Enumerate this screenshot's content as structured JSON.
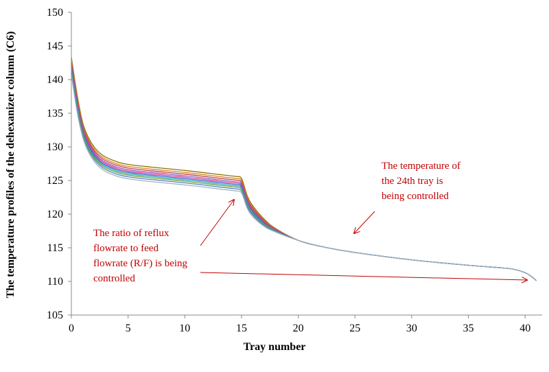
{
  "chart_data": {
    "type": "line",
    "title": "",
    "xlabel": "Tray  number",
    "ylabel": "The temperature profiles of the dehexanizer column   (C6)",
    "xlim": [
      0,
      41.5
    ],
    "ylim": [
      105,
      150
    ],
    "xticks": [
      "0",
      "5",
      "10",
      "15",
      "20",
      "25",
      "30",
      "35",
      "40"
    ],
    "yticks": [
      "105",
      "110",
      "115",
      "120",
      "125",
      "130",
      "135",
      "140",
      "145",
      "150"
    ],
    "grid": false,
    "legend": "none",
    "base_profile": {
      "x": [
        0,
        0.5,
        1,
        1.5,
        2,
        2.5,
        3,
        4,
        5,
        7,
        10,
        13,
        14,
        14.5,
        15,
        15.5,
        16,
        17,
        18,
        20,
        22,
        25,
        30,
        35,
        38,
        39,
        40,
        40.5,
        41
      ],
      "y": [
        142,
        136.5,
        132.5,
        130.3,
        128.9,
        128.0,
        127.4,
        126.7,
        126.3,
        125.9,
        125.4,
        124.8,
        124.6,
        124.5,
        124.2,
        121.8,
        120.4,
        118.7,
        117.6,
        116.1,
        115.2,
        114.3,
        113.2,
        112.4,
        112.0,
        111.8,
        111.3,
        110.8,
        110.1
      ]
    },
    "series_offsets": [
      1.1,
      0.8,
      0.55,
      0.3,
      0.1,
      -0.1,
      -0.3,
      -0.5,
      -0.75,
      -1.05
    ],
    "series_colors": [
      "#8b7500",
      "#e0802a",
      "#c04040",
      "#9060c0",
      "#e040a0",
      "#3a5fcd",
      "#20b0b0",
      "#70a040",
      "#4f81bd",
      "#a0b0c0"
    ],
    "annotations": [
      {
        "lines": [
          "The temperature of",
          "the 24th tray is",
          "being controlled"
        ]
      },
      {
        "lines": [
          "The ratio of reflux",
          "flowrate  to feed",
          "flowrate (R/F) is being",
          "controlled"
        ]
      }
    ]
  }
}
